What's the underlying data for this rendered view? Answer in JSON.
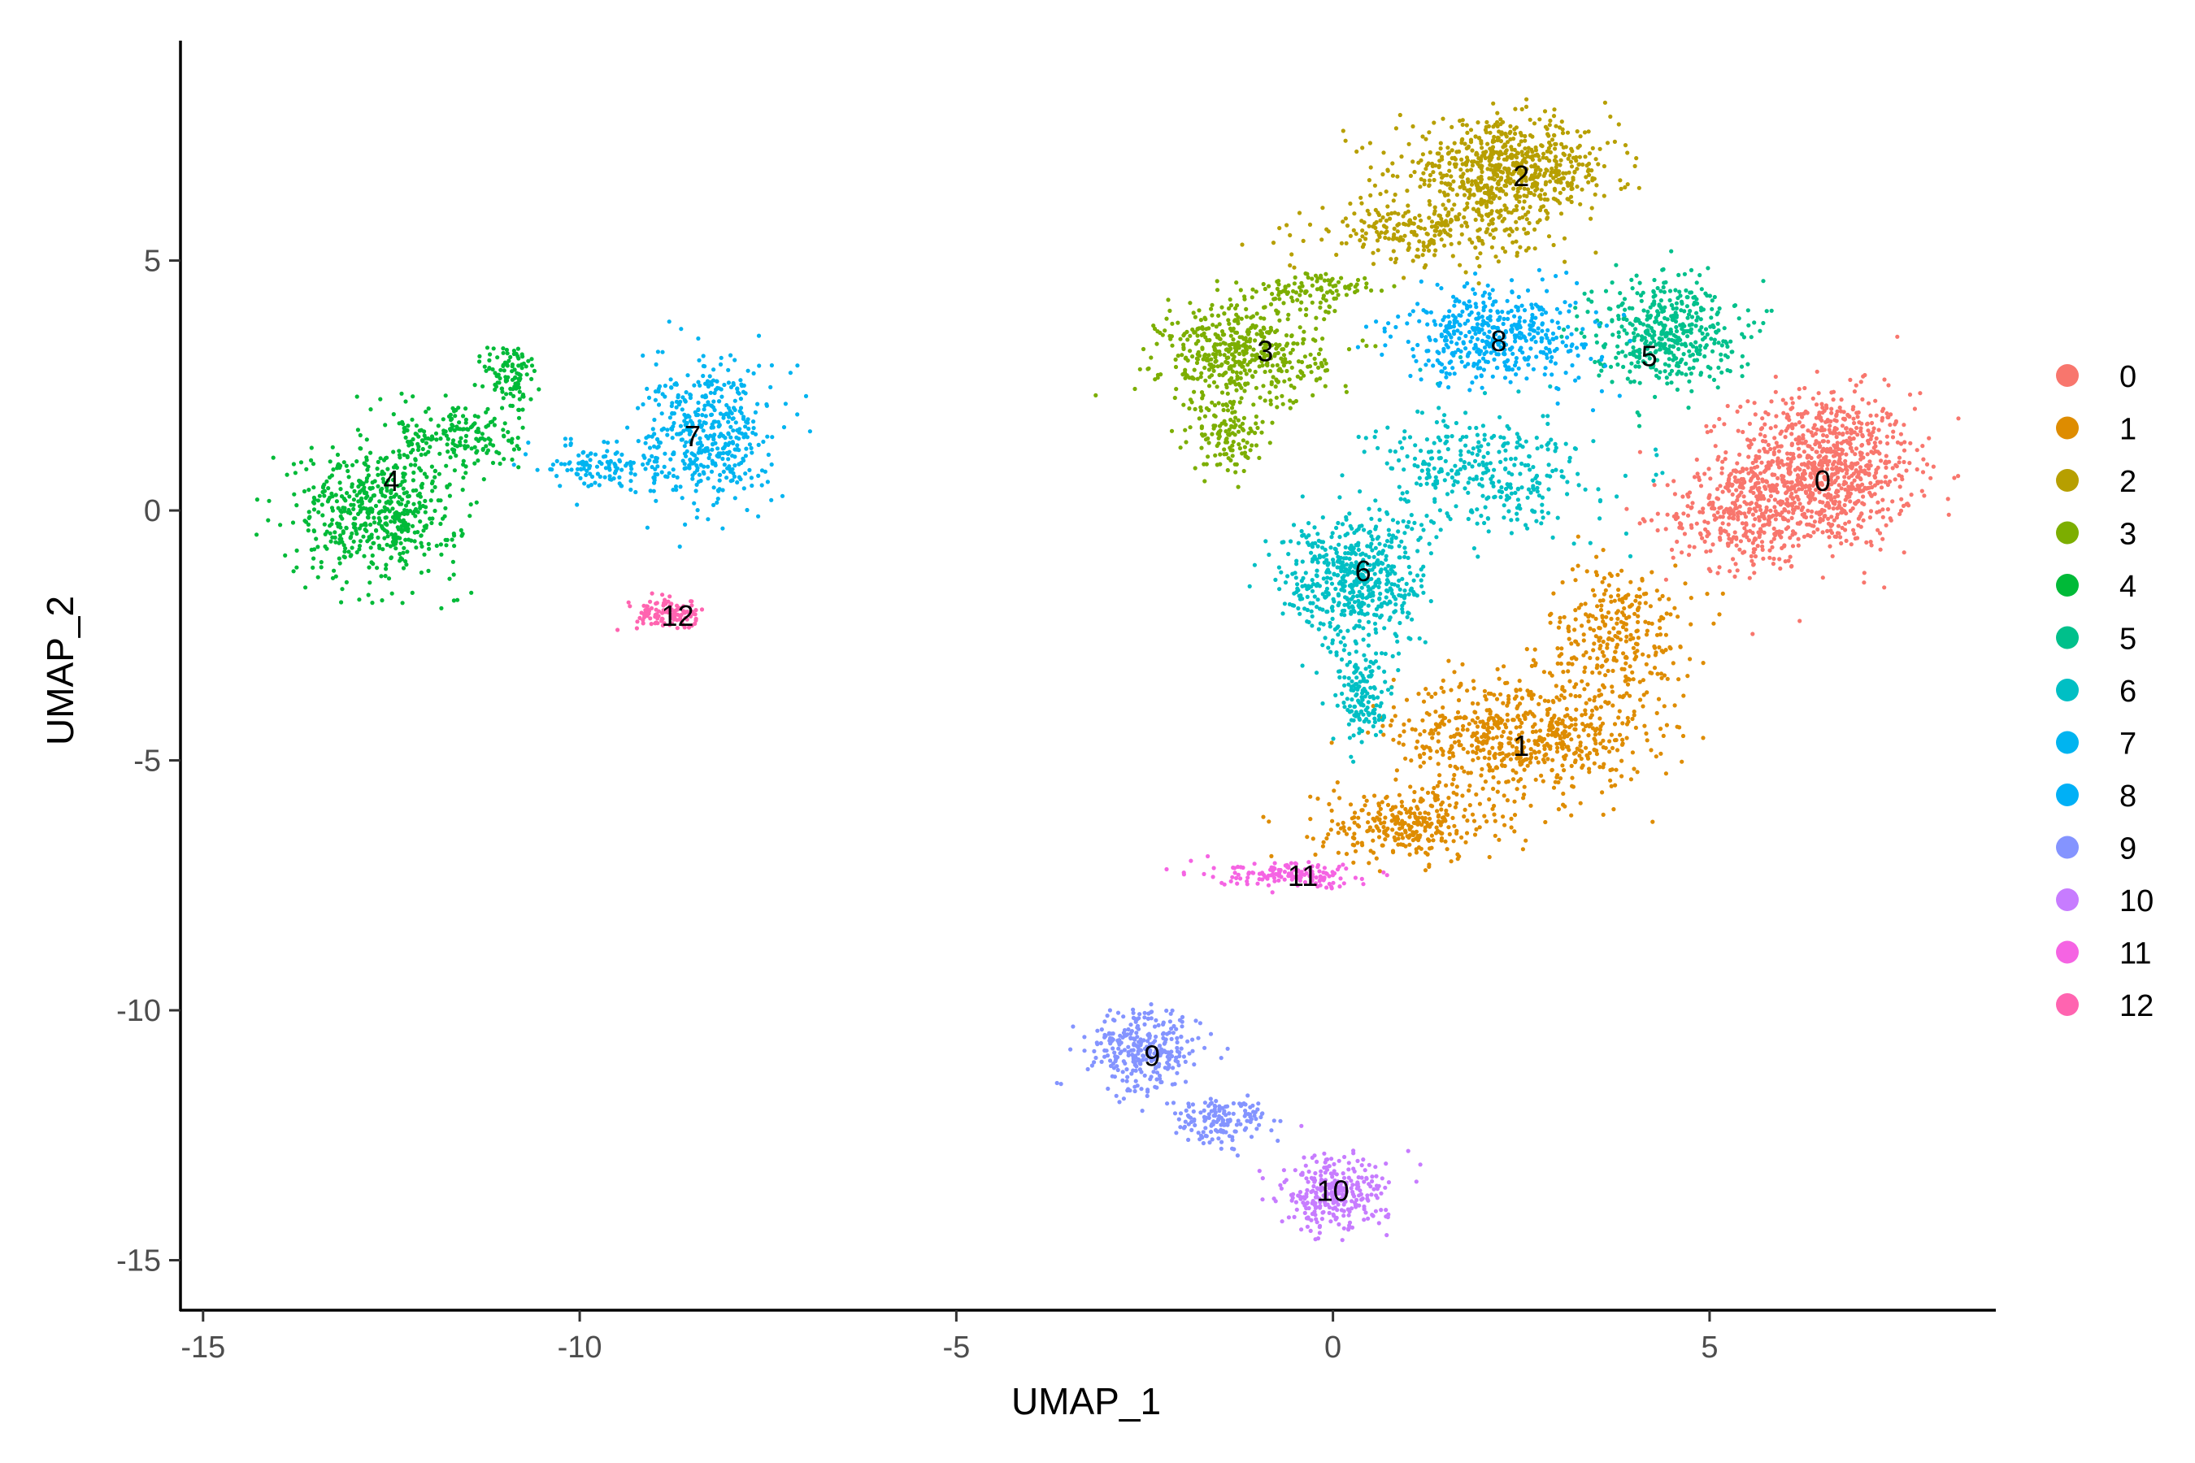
{
  "chart_data": {
    "type": "scatter",
    "title": "",
    "xlabel": "UMAP_1",
    "ylabel": "UMAP_2",
    "xlim": [
      -15.3,
      8.8
    ],
    "ylim": [
      -16.0,
      9.4
    ],
    "xticks": [
      -15,
      -10,
      -5,
      0,
      5
    ],
    "xtick_labels": [
      "-15",
      "-10",
      "-5",
      "0",
      "5"
    ],
    "yticks": [
      5,
      0,
      -5,
      -10,
      -15
    ],
    "ytick_labels": [
      "5",
      "0",
      "-5",
      "-10",
      "-15"
    ],
    "grid": false,
    "legend_position": "right",
    "clusters": [
      {
        "name": "0",
        "label": "0",
        "color": "#F8766D",
        "label_pos": [
          6.5,
          0.6
        ],
        "blobs": [
          [
            6.5,
            0.8,
            1.0,
            1.3,
            950
          ],
          [
            5.4,
            -0.1,
            0.8,
            0.9,
            300
          ]
        ]
      },
      {
        "name": "1",
        "label": "1",
        "color": "#DE8C00",
        "label_pos": [
          2.5,
          -4.7
        ],
        "blobs": [
          [
            2.5,
            -4.5,
            1.4,
            1.0,
            650
          ],
          [
            3.8,
            -2.5,
            0.8,
            1.2,
            300
          ],
          [
            1.0,
            -6.3,
            1.0,
            0.6,
            300
          ]
        ]
      },
      {
        "name": "2",
        "label": "2",
        "color": "#B79F00",
        "label_pos": [
          2.5,
          6.7
        ],
        "blobs": [
          [
            2.3,
            6.8,
            1.2,
            0.8,
            700
          ],
          [
            1.2,
            5.6,
            1.2,
            0.5,
            250
          ]
        ]
      },
      {
        "name": "3",
        "label": "3",
        "color": "#7CAE00",
        "label_pos": [
          -0.9,
          3.2
        ],
        "blobs": [
          [
            -1.2,
            3.1,
            0.9,
            0.9,
            500
          ],
          [
            -1.4,
            1.5,
            0.4,
            0.6,
            120
          ],
          [
            -0.2,
            4.4,
            0.7,
            0.3,
            100
          ]
        ]
      },
      {
        "name": "4",
        "label": "4",
        "color": "#00BA38",
        "label_pos": [
          -12.5,
          0.6
        ],
        "blobs": [
          [
            -12.7,
            0.0,
            0.9,
            1.1,
            550
          ],
          [
            -11.6,
            1.5,
            0.7,
            0.6,
            180
          ],
          [
            -10.9,
            2.7,
            0.3,
            0.6,
            100
          ]
        ]
      },
      {
        "name": "5",
        "label": "5",
        "color": "#00C08B",
        "label_pos": [
          4.2,
          3.1
        ],
        "blobs": [
          [
            4.4,
            3.6,
            0.8,
            0.9,
            450
          ]
        ]
      },
      {
        "name": "6",
        "label": "6",
        "color": "#00BFC4",
        "label_pos": [
          0.4,
          -1.2
        ],
        "blobs": [
          [
            0.3,
            -1.4,
            0.8,
            1.1,
            550
          ],
          [
            0.4,
            -3.7,
            0.3,
            0.8,
            150
          ],
          [
            2.0,
            0.8,
            1.2,
            1.0,
            350
          ]
        ]
      },
      {
        "name": "7",
        "label": "7",
        "color": "#00B4F0",
        "label_pos": [
          -8.5,
          1.5
        ],
        "blobs": [
          [
            -8.3,
            1.5,
            0.7,
            1.2,
            450
          ],
          [
            -9.7,
            0.9,
            0.6,
            0.4,
            120
          ]
        ]
      },
      {
        "name": "8",
        "label": "8",
        "color": "#00B0F6",
        "label_pos": [
          2.2,
          3.4
        ],
        "blobs": [
          [
            2.2,
            3.5,
            1.1,
            0.8,
            450
          ]
        ]
      },
      {
        "name": "9",
        "label": "9",
        "color": "#8494FF",
        "label_pos": [
          -2.4,
          -10.9
        ],
        "blobs": [
          [
            -2.5,
            -10.8,
            0.6,
            0.7,
            300
          ],
          [
            -1.5,
            -12.2,
            0.5,
            0.4,
            150
          ]
        ]
      },
      {
        "name": "10",
        "label": "10",
        "color": "#C77CFF",
        "label_pos": [
          0.0,
          -13.6
        ],
        "blobs": [
          [
            0.0,
            -13.7,
            0.6,
            0.6,
            300
          ]
        ]
      },
      {
        "name": "11",
        "label": "11",
        "color": "#F564E3",
        "label_pos": [
          -0.4,
          -7.3
        ],
        "blobs": [
          [
            -0.5,
            -7.3,
            0.9,
            0.2,
            150
          ]
        ]
      },
      {
        "name": "12",
        "label": "12",
        "color": "#FF64B0",
        "label_pos": [
          -8.7,
          -2.1
        ],
        "blobs": [
          [
            -8.8,
            -2.1,
            0.4,
            0.25,
            110
          ]
        ]
      }
    ]
  }
}
